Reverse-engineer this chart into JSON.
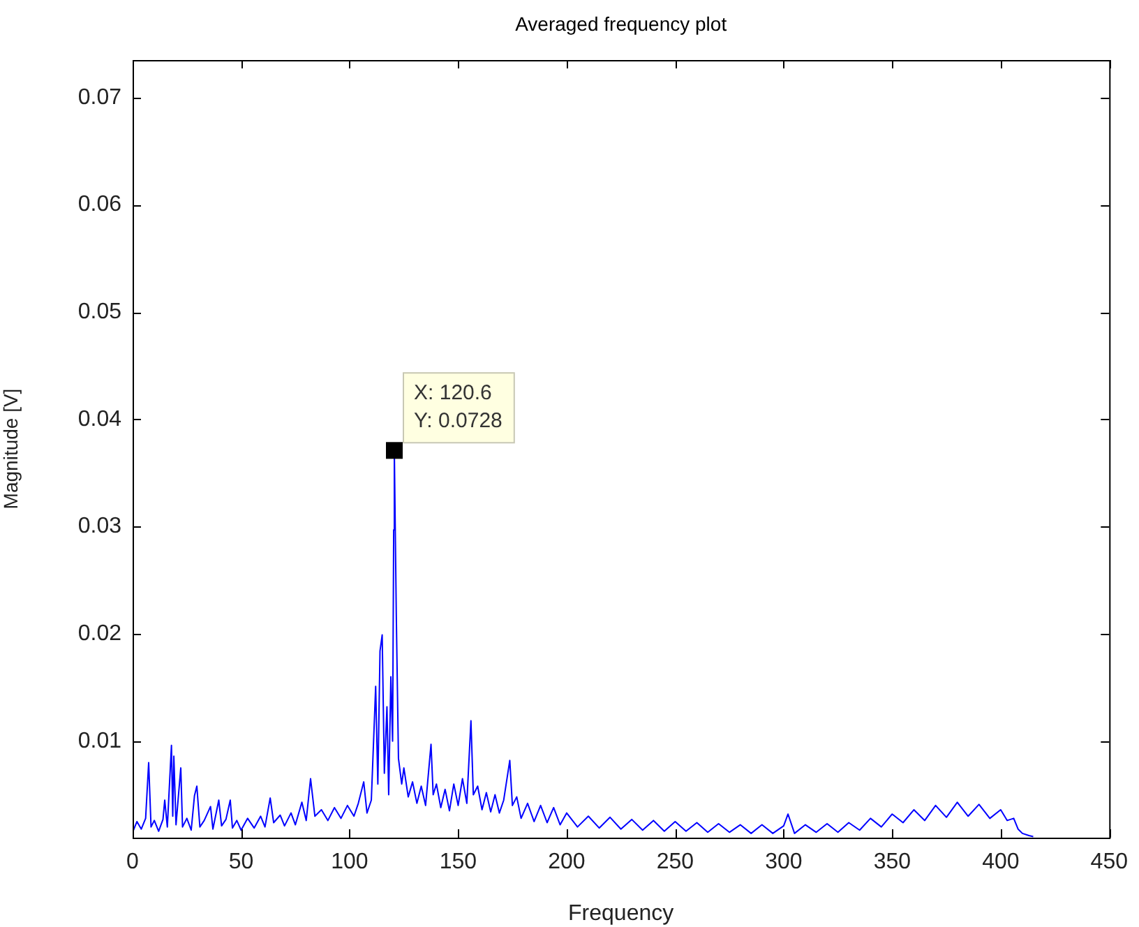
{
  "chart_data": {
    "type": "line",
    "title": "Averaged frequency plot",
    "xlabel": "Frequency",
    "ylabel": "Magnitude [V]",
    "xlim": [
      0,
      450
    ],
    "xticks": [
      0,
      50,
      100,
      150,
      200,
      250,
      300,
      350,
      400,
      450
    ],
    "ylim": [
      0.001,
      0.0735
    ],
    "yticks": [
      0.01,
      0.02,
      0.03,
      0.04,
      0.05,
      0.06,
      0.07
    ],
    "grid": false,
    "legend": false,
    "marker": "none",
    "line_style": "solid",
    "annotations": [
      {
        "text": "X: 120.6\nY: 0.0728",
        "x": 120.6,
        "y": 0.0371
      }
    ],
    "series": [
      {
        "color": "#0000ff",
        "x": [
          0,
          2,
          4,
          6,
          7.4,
          8.5,
          10,
          12,
          14,
          14.8,
          16,
          17.9,
          18.5,
          19,
          20,
          22.2,
          23,
          25,
          27,
          28.5,
          29.6,
          31,
          33,
          35.9,
          37,
          39.7,
          41,
          43,
          45,
          46,
          48,
          50,
          53,
          56,
          59,
          61,
          63.4,
          65,
          68,
          70,
          73,
          75,
          78,
          80,
          82,
          84,
          87,
          90,
          93,
          96,
          99,
          102,
          104,
          106.5,
          108,
          110,
          112,
          113,
          114,
          115,
          116,
          117.2,
          118,
          119,
          119.8,
          120.3,
          120.6,
          121.5,
          122.5,
          124,
          125,
          127,
          129,
          131,
          133,
          135,
          137.5,
          138.5,
          140,
          142,
          144,
          146,
          148,
          150,
          152,
          154,
          155.9,
          157,
          159,
          161,
          163,
          165,
          167,
          169,
          171,
          173.8,
          175,
          177,
          179,
          182,
          185,
          188,
          191,
          194,
          197,
          200,
          205,
          210,
          215,
          220,
          225,
          230,
          235,
          240,
          245,
          250,
          255,
          260,
          265,
          270,
          275,
          280,
          285,
          290,
          295,
          300,
          302,
          305,
          310,
          315,
          320,
          325,
          330,
          335,
          340,
          345,
          350,
          355,
          360,
          365,
          370,
          375,
          380,
          385,
          390,
          395,
          400,
          403,
          406,
          408,
          410,
          413,
          415
        ],
        "values": [
          0.0015,
          0.0025,
          0.0018,
          0.0028,
          0.008,
          0.002,
          0.0026,
          0.0016,
          0.0027,
          0.0045,
          0.002,
          0.0096,
          0.003,
          0.0086,
          0.0022,
          0.0075,
          0.002,
          0.0028,
          0.0017,
          0.0049,
          0.0058,
          0.002,
          0.0026,
          0.0039,
          0.0018,
          0.0045,
          0.0021,
          0.0027,
          0.0045,
          0.0019,
          0.0026,
          0.0017,
          0.0028,
          0.0019,
          0.003,
          0.002,
          0.0047,
          0.0024,
          0.0031,
          0.0021,
          0.0033,
          0.0022,
          0.0043,
          0.0026,
          0.0065,
          0.003,
          0.0036,
          0.0026,
          0.0038,
          0.0028,
          0.004,
          0.003,
          0.0042,
          0.0062,
          0.0033,
          0.0045,
          0.0151,
          0.006,
          0.0184,
          0.0199,
          0.007,
          0.0132,
          0.005,
          0.016,
          0.01,
          0.0297,
          0.0371,
          0.0218,
          0.0084,
          0.006,
          0.0075,
          0.0048,
          0.0062,
          0.0042,
          0.0058,
          0.004,
          0.0097,
          0.005,
          0.006,
          0.0038,
          0.0055,
          0.0035,
          0.006,
          0.004,
          0.0065,
          0.0042,
          0.0119,
          0.005,
          0.0058,
          0.0036,
          0.0052,
          0.0034,
          0.005,
          0.0033,
          0.0045,
          0.0082,
          0.004,
          0.0048,
          0.0028,
          0.0042,
          0.0025,
          0.004,
          0.0024,
          0.0038,
          0.0022,
          0.0033,
          0.002,
          0.003,
          0.0019,
          0.0029,
          0.0018,
          0.0027,
          0.0017,
          0.0026,
          0.0016,
          0.0025,
          0.0016,
          0.0024,
          0.0015,
          0.0023,
          0.0015,
          0.0022,
          0.0014,
          0.0022,
          0.0014,
          0.0021,
          0.0032,
          0.0014,
          0.0022,
          0.0015,
          0.0023,
          0.0015,
          0.0024,
          0.0017,
          0.0028,
          0.002,
          0.0032,
          0.0024,
          0.0036,
          0.0026,
          0.004,
          0.0029,
          0.0043,
          0.003,
          0.0041,
          0.0028,
          0.0036,
          0.0026,
          0.0028,
          0.0018,
          0.0014,
          0.0012,
          0.0011
        ]
      }
    ]
  }
}
